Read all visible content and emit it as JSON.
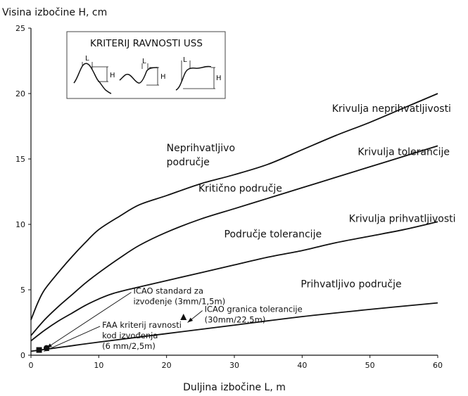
{
  "chart_data": {
    "type": "line",
    "ylabel": "Visina izbočine H, cm",
    "xlabel": "Duljina izbočine L, m",
    "xlim": [
      0,
      60
    ],
    "ylim": [
      0,
      25
    ],
    "x_ticks": [
      0,
      10,
      20,
      30,
      40,
      50,
      60
    ],
    "y_ticks": [
      0,
      5,
      10,
      15,
      20,
      25
    ],
    "grid": false,
    "series": [
      {
        "name": "Krivulja neprihvatljivosti",
        "points": [
          [
            0,
            2.7
          ],
          [
            1,
            4
          ],
          [
            2,
            5
          ],
          [
            4,
            6.3
          ],
          [
            6,
            7.5
          ],
          [
            8,
            8.6
          ],
          [
            10,
            9.6
          ],
          [
            13,
            10.6
          ],
          [
            16,
            11.5
          ],
          [
            20,
            12.2
          ],
          [
            25,
            13.1
          ],
          [
            30,
            13.8
          ],
          [
            35,
            14.6
          ],
          [
            40,
            15.7
          ],
          [
            45,
            16.8
          ],
          [
            50,
            17.8
          ],
          [
            55,
            18.9
          ],
          [
            60,
            20
          ]
        ]
      },
      {
        "name": "Krivulja tolerancije",
        "points": [
          [
            0,
            1.5
          ],
          [
            2,
            2.7
          ],
          [
            4,
            3.7
          ],
          [
            6,
            4.6
          ],
          [
            8,
            5.5
          ],
          [
            10,
            6.3
          ],
          [
            13,
            7.4
          ],
          [
            16,
            8.4
          ],
          [
            20,
            9.4
          ],
          [
            25,
            10.4
          ],
          [
            30,
            11.2
          ],
          [
            35,
            12
          ],
          [
            40,
            12.8
          ],
          [
            45,
            13.6
          ],
          [
            50,
            14.4
          ],
          [
            55,
            15.2
          ],
          [
            60,
            16
          ]
        ]
      },
      {
        "name": "Krivulja prihvatljivosti",
        "points": [
          [
            0,
            1.1
          ],
          [
            2,
            1.9
          ],
          [
            4,
            2.6
          ],
          [
            6,
            3.2
          ],
          [
            8,
            3.8
          ],
          [
            10,
            4.3
          ],
          [
            12,
            4.7
          ],
          [
            15,
            5.1
          ],
          [
            20,
            5.7
          ],
          [
            25,
            6.3
          ],
          [
            30,
            6.9
          ],
          [
            35,
            7.5
          ],
          [
            40,
            8
          ],
          [
            45,
            8.6
          ],
          [
            50,
            9.1
          ],
          [
            55,
            9.6
          ],
          [
            60,
            10.2
          ]
        ]
      },
      {
        "name": "",
        "points": [
          [
            0,
            0.3
          ],
          [
            5,
            0.65
          ],
          [
            10,
            1
          ],
          [
            20,
            1.65
          ],
          [
            30,
            2.3
          ],
          [
            40,
            2.95
          ],
          [
            50,
            3.5
          ],
          [
            60,
            4
          ]
        ]
      }
    ],
    "markers": [
      {
        "shape": "square",
        "x": 1.2,
        "y": 0.4
      },
      {
        "shape": "circle",
        "x": 2.3,
        "y": 0.55
      },
      {
        "shape": "triangle",
        "x": 22.5,
        "y": 2.9
      }
    ],
    "region_labels": [
      {
        "lines": [
          "Neprihvatljivo",
          "područje"
        ],
        "x": 20,
        "y": 15.6
      },
      {
        "lines": [
          "Kritično područje"
        ],
        "x": 24.7,
        "y": 12.5
      },
      {
        "lines": [
          "Područje tolerancije"
        ],
        "x": 28.5,
        "y": 9.0
      },
      {
        "lines": [
          "Prihvatljivo područje"
        ],
        "x": 39.8,
        "y": 5.2
      }
    ],
    "curve_labels": [
      {
        "text": "Krivulja neprihvatljivosti",
        "x": 44.4,
        "y": 18.6
      },
      {
        "text": "Krivulja tolerancije",
        "x": 48.2,
        "y": 15.3
      },
      {
        "text": "Krivulja prihvatljivosti",
        "x": 46.9,
        "y": 10.2
      }
    ],
    "annotations": [
      {
        "lines": [
          "ICAO standard za",
          "izvođenje (3mm/1,5m)"
        ],
        "x": 15.1,
        "y": 4.7,
        "arrow_to": [
          2.3,
          0.55
        ]
      },
      {
        "lines": [
          "ICAO granica tolerancije",
          "(30mm/22,5m)"
        ],
        "x": 25.6,
        "y": 3.3,
        "arrow_to": [
          23.1,
          2.5
        ]
      },
      {
        "lines": [
          "FAA kriterij ravnosti",
          "kod izvođenja",
          "(6 mm/2,5m)"
        ],
        "x": 10.5,
        "y": 2.1,
        "arrow_to": [
          1.9,
          0.3
        ]
      }
    ],
    "inset": {
      "title": "KRITERIJ RAVNOSTI USS",
      "label_L": "L",
      "label_H": "H"
    }
  }
}
